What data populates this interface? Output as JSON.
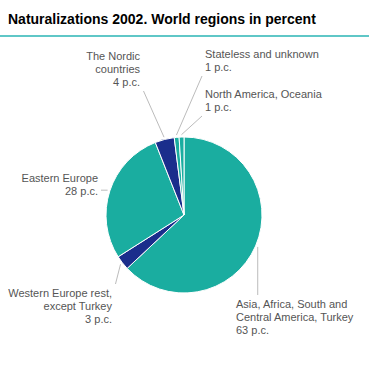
{
  "chart_data": {
    "type": "pie",
    "title": "Naturalizations 2002. World regions in percent",
    "categories": [
      "Asia, Africa, South and\nCentral America, Turkey\n63 p.c.",
      "Western Europe rest,\nexcept Turkey\n3 p.c.",
      "Eastern Europe\n28 p.c.",
      "The Nordic\ncountries\n4 p.c.",
      "Stateless and unknown\n1 p.c.",
      "North America, Oceania\n1 p.c."
    ],
    "values": [
      63,
      3,
      28,
      4,
      1,
      1
    ],
    "colors": [
      "#1aada0",
      "#1a2e8c",
      "#1aada0",
      "#1a2e8c",
      "#1aada0",
      "#1aada0"
    ]
  }
}
